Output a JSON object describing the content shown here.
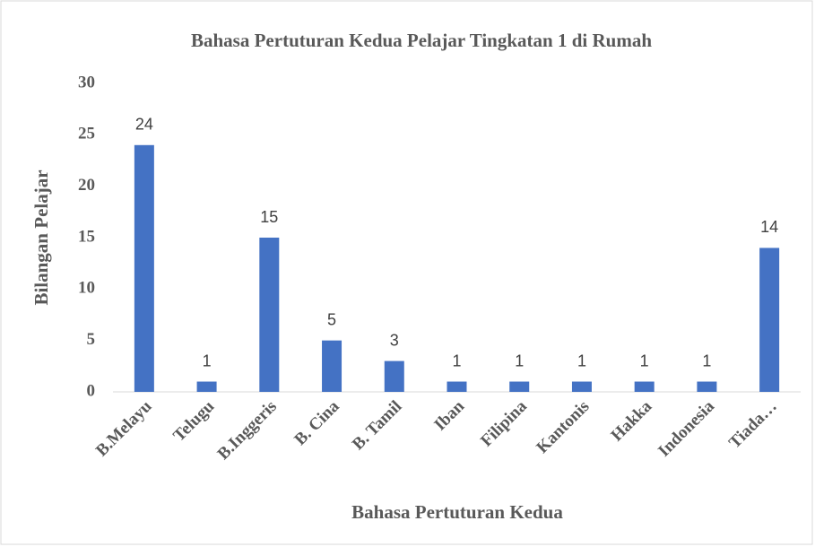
{
  "chart_data": {
    "type": "bar",
    "title": "Bahasa Pertuturan Kedua Pelajar Tingkatan 1 di Rumah",
    "x_label": "Bahasa Pertuturan Kedua",
    "y_label": "Bilangan Pelajar",
    "categories": [
      "B.Melayu",
      "Telugu",
      "B.Inggeris",
      "B. Cina",
      "B. Tamil",
      "Iban",
      "Filipina",
      "Kantonis",
      "Hakka",
      "Indonesia",
      "Tiada…"
    ],
    "values": [
      24,
      1,
      15,
      5,
      3,
      1,
      1,
      1,
      1,
      1,
      14
    ],
    "color": "#4472c4",
    "ylim": [
      0,
      30
    ],
    "yticks": [
      0,
      5,
      10,
      15,
      20,
      25,
      30
    ],
    "grid": false
  }
}
